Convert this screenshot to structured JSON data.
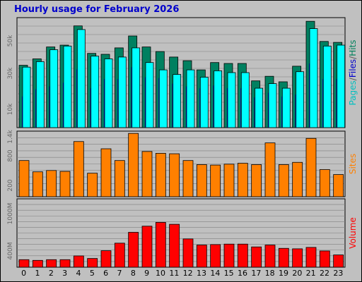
{
  "chart_data": {
    "title": "Hourly usage for February 2026",
    "x_ticks": [
      "0",
      "1",
      "2",
      "3",
      "4",
      "5",
      "6",
      "7",
      "8",
      "9",
      "10",
      "11",
      "12",
      "13",
      "14",
      "15",
      "16",
      "17",
      "18",
      "19",
      "20",
      "21",
      "22",
      "23"
    ],
    "panels": [
      {
        "type": "bar",
        "y_label_parts": [
          {
            "text": "Pages",
            "color": "#00bfbf"
          },
          {
            "text": "/",
            "color": "#555555"
          },
          {
            "text": "Files",
            "color": "#0000cc"
          },
          {
            "text": "/",
            "color": "#555555"
          },
          {
            "text": "Hits",
            "color": "#00805c"
          }
        ],
        "y_ticks": [
          "10k",
          "30k",
          "50k"
        ],
        "ylim": [
          0,
          60000
        ],
        "series": [
          {
            "name": "Hits",
            "color": "#008060",
            "values": [
              34000,
              37500,
              44000,
              45000,
              55500,
              40500,
              40000,
              43500,
              50000,
              44000,
              41500,
              38500,
              36500,
              31500,
              35500,
              35000,
              35000,
              25500,
              28000,
              25000,
              33500,
              58000,
              47000,
              46500
            ]
          },
          {
            "name": "Files",
            "color": "#0000cc",
            "values": [
              17000,
              21000,
              22500,
              24500,
              31800,
              21500,
              26500,
              26500,
              33000,
              27500,
              27000,
              24000,
              22500,
              21500,
              23000,
              21500,
              21500,
              16500,
              19000,
              17000,
              18000,
              35000,
              26500,
              26500
            ]
          },
          {
            "name": "Pages",
            "color": "#00ffff",
            "values": [
              33000,
              36000,
              42500,
              44500,
              53500,
              39000,
              37500,
              38500,
              43500,
              35500,
              31500,
              29000,
              31500,
              27500,
              31000,
              30000,
              30000,
              21500,
              24000,
              21500,
              30500,
              54000,
              44500,
              45000
            ]
          }
        ]
      },
      {
        "type": "bar",
        "y_label_parts": [
          {
            "text": "Sites",
            "color": "#ff8000"
          }
        ],
        "y_ticks": [
          "200",
          "800",
          "1.4k"
        ],
        "ylim": [
          0,
          1450
        ],
        "series": [
          {
            "name": "Sites",
            "color": "#ff8000",
            "values": [
              800,
              550,
              580,
              560,
              1220,
              520,
              1060,
              800,
              1400,
              1000,
              960,
              950,
              800,
              710,
              700,
              720,
              740,
              710,
              1190,
              710,
              760,
              1290,
              600,
              490
            ]
          }
        ]
      },
      {
        "type": "bar",
        "y_label_parts": [
          {
            "text": "Volume",
            "color": "#ff0000"
          }
        ],
        "y_ticks": [
          "400M",
          "1000M"
        ],
        "ylim": [
          0,
          1450
        ],
        "series": [
          {
            "name": "Volume",
            "color": "#ff0000",
            "values": [
              160,
              145,
              160,
              160,
              240,
              185,
              350,
              510,
              740,
              870,
              950,
              910,
              600,
              470,
              480,
              490,
              490,
              430,
              470,
              400,
              390,
              420,
              345,
              260
            ]
          }
        ]
      }
    ]
  }
}
